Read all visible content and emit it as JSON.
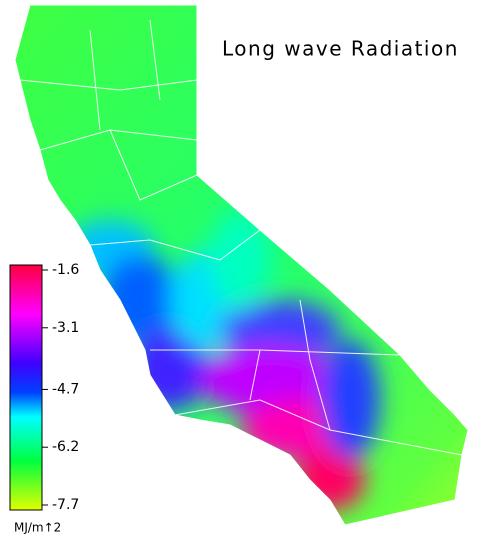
{
  "title": "Long wave Radiation",
  "colorbar": {
    "range": [
      -7.7,
      -1.6
    ],
    "ticks": [
      -1.6,
      -3.1,
      -4.7,
      -6.2,
      -7.7
    ],
    "unit": "MJ/m↑2"
  }
}
